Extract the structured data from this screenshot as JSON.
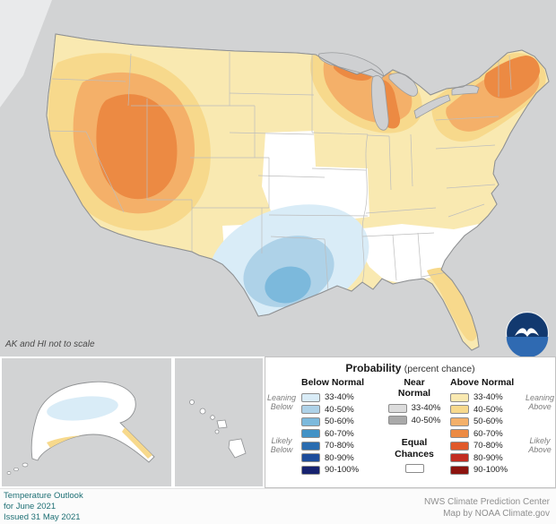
{
  "colors": {
    "background": "#d2d3d4",
    "ocean_highlight": "#e9eaeb",
    "land": "#ffffff",
    "outline": "#8f9193",
    "state_line": "#bdbdbd",
    "lake": "#cfd0d2",
    "footer_left_text": "#1d6f74",
    "footer_right_text": "#8f8f8f",
    "noaa_navy": "#12396f",
    "noaa_light_blue": "#2f6ab2"
  },
  "map": {
    "note": "AK and HI not to scale"
  },
  "legend": {
    "title": "Probability",
    "title_note": "(percent chance)",
    "below": {
      "header": "Below Normal",
      "rows": [
        {
          "range": "33-40%",
          "color": "#d9ecf7"
        },
        {
          "range": "40-50%",
          "color": "#aed2e8"
        },
        {
          "range": "50-60%",
          "color": "#7cb9dc"
        },
        {
          "range": "60-70%",
          "color": "#4292c6"
        },
        {
          "range": "70-80%",
          "color": "#2a6cb0"
        },
        {
          "range": "80-90%",
          "color": "#1e4d9b"
        },
        {
          "range": "90-100%",
          "color": "#16226f"
        }
      ]
    },
    "near": {
      "header": "Near Normal",
      "rows": [
        {
          "range": "33-40%",
          "color": "#dcdcdc"
        },
        {
          "range": "40-50%",
          "color": "#a9a9a9"
        }
      ]
    },
    "above": {
      "header": "Above Normal",
      "rows": [
        {
          "range": "33-40%",
          "color": "#f9e9b1"
        },
        {
          "range": "40-50%",
          "color": "#f7d98c"
        },
        {
          "range": "50-60%",
          "color": "#f4b069"
        },
        {
          "range": "60-70%",
          "color": "#ec8a43"
        },
        {
          "range": "70-80%",
          "color": "#e0592a"
        },
        {
          "range": "80-90%",
          "color": "#c22d22"
        },
        {
          "range": "90-100%",
          "color": "#8c130e"
        }
      ]
    },
    "equal_chances": {
      "label": "Equal Chances",
      "color": "#ffffff"
    },
    "side_labels": {
      "leaning_below": "Leaning Below",
      "likely_below": "Likely Below",
      "leaning_above": "Leaning Above",
      "likely_above": "Likely Above"
    }
  },
  "footer": {
    "left_lines": [
      "Temperature Outlook",
      "for June 2021",
      "Issued 31 May 2021"
    ],
    "right_lines": [
      "NWS Climate Prediction Center",
      "Map by NOAA Climate.gov"
    ]
  },
  "icons": {
    "noaa_logo": "noaa-seagull-emblem"
  }
}
